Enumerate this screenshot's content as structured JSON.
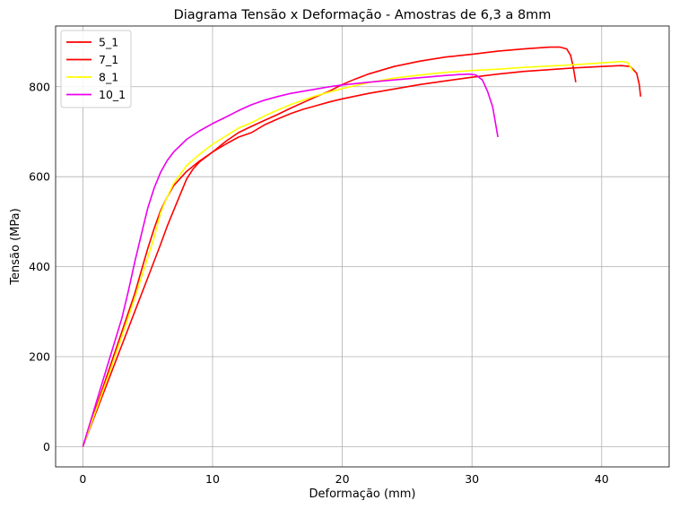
{
  "chart_data": {
    "type": "line",
    "title": "Diagrama Tensão x Deformação - Amostras de 6,3 a 8mm",
    "xlabel": "Deformação (mm)",
    "ylabel": "Tensão (MPa)",
    "xlim": [
      -2.1,
      45.2
    ],
    "ylim": [
      -45,
      935
    ],
    "xticks": [
      0,
      10,
      20,
      30,
      40
    ],
    "yticks": [
      0,
      200,
      400,
      600,
      800
    ],
    "grid": true,
    "legend_position": "top-left",
    "series": [
      {
        "name": "5_1",
        "color": "#ff0000",
        "points": [
          [
            0,
            0
          ],
          [
            1,
            75
          ],
          [
            2,
            150
          ],
          [
            3,
            225
          ],
          [
            4,
            300
          ],
          [
            5,
            375
          ],
          [
            6,
            450
          ],
          [
            6.5,
            490
          ],
          [
            7,
            525
          ],
          [
            7.5,
            560
          ],
          [
            8,
            595
          ],
          [
            8.5,
            617
          ],
          [
            9,
            633
          ],
          [
            10,
            655
          ],
          [
            11,
            672
          ],
          [
            12,
            688
          ],
          [
            13,
            698
          ],
          [
            14,
            715
          ],
          [
            15,
            728
          ],
          [
            16,
            740
          ],
          [
            17,
            750
          ],
          [
            18,
            758
          ],
          [
            19,
            766
          ],
          [
            20,
            773
          ],
          [
            22,
            785
          ],
          [
            24,
            795
          ],
          [
            26,
            805
          ],
          [
            28,
            813
          ],
          [
            30,
            821
          ],
          [
            32,
            828
          ],
          [
            34,
            834
          ],
          [
            36,
            838
          ],
          [
            38,
            842
          ],
          [
            40,
            845
          ],
          [
            41.5,
            847
          ],
          [
            42.2,
            845
          ],
          [
            42.7,
            830
          ],
          [
            42.9,
            805
          ],
          [
            43,
            778
          ]
        ]
      },
      {
        "name": "7_1",
        "color": "#ff0000",
        "points": [
          [
            0,
            0
          ],
          [
            1,
            85
          ],
          [
            2,
            170
          ],
          [
            3,
            255
          ],
          [
            4,
            340
          ],
          [
            4.5,
            390
          ],
          [
            5,
            440
          ],
          [
            5.5,
            485
          ],
          [
            6,
            525
          ],
          [
            6.5,
            555
          ],
          [
            7,
            580
          ],
          [
            8,
            612
          ],
          [
            9,
            635
          ],
          [
            10,
            655
          ],
          [
            11,
            678
          ],
          [
            12,
            698
          ],
          [
            13,
            712
          ],
          [
            14,
            725
          ],
          [
            15,
            738
          ],
          [
            16,
            752
          ],
          [
            17,
            765
          ],
          [
            18,
            778
          ],
          [
            19,
            790
          ],
          [
            20,
            805
          ],
          [
            21,
            817
          ],
          [
            22,
            828
          ],
          [
            24,
            845
          ],
          [
            26,
            857
          ],
          [
            28,
            866
          ],
          [
            30,
            872
          ],
          [
            32,
            879
          ],
          [
            34,
            884
          ],
          [
            35,
            886
          ],
          [
            36,
            888
          ],
          [
            36.8,
            888
          ],
          [
            37.3,
            884
          ],
          [
            37.6,
            870
          ],
          [
            37.8,
            845
          ],
          [
            38,
            810
          ]
        ]
      },
      {
        "name": "8_1",
        "color": "#ffff00",
        "points": [
          [
            0,
            0
          ],
          [
            1,
            80
          ],
          [
            2,
            160
          ],
          [
            3,
            245
          ],
          [
            4,
            330
          ],
          [
            5,
            420
          ],
          [
            5.5,
            465
          ],
          [
            6,
            520
          ],
          [
            6.5,
            555
          ],
          [
            7,
            585
          ],
          [
            8,
            625
          ],
          [
            9,
            650
          ],
          [
            10,
            672
          ],
          [
            11,
            690
          ],
          [
            12,
            708
          ],
          [
            13,
            720
          ],
          [
            14,
            735
          ],
          [
            15,
            748
          ],
          [
            16,
            760
          ],
          [
            17,
            770
          ],
          [
            18,
            780
          ],
          [
            19,
            788
          ],
          [
            20,
            796
          ],
          [
            22,
            809
          ],
          [
            24,
            819
          ],
          [
            26,
            826
          ],
          [
            28,
            832
          ],
          [
            30,
            836
          ],
          [
            32,
            839
          ],
          [
            34,
            843
          ],
          [
            36,
            846
          ],
          [
            38,
            849
          ],
          [
            40,
            853
          ],
          [
            41,
            855
          ],
          [
            41.6,
            856
          ],
          [
            42,
            854
          ],
          [
            42.2,
            845
          ],
          [
            42.4,
            835
          ]
        ]
      },
      {
        "name": "10_1",
        "color": "#ee00ee",
        "points": [
          [
            0,
            0
          ],
          [
            1,
            95
          ],
          [
            2,
            190
          ],
          [
            3,
            285
          ],
          [
            3.5,
            345
          ],
          [
            4,
            410
          ],
          [
            4.5,
            470
          ],
          [
            5,
            530
          ],
          [
            5.5,
            575
          ],
          [
            6,
            610
          ],
          [
            6.5,
            636
          ],
          [
            7,
            655
          ],
          [
            8,
            683
          ],
          [
            9,
            702
          ],
          [
            10,
            718
          ],
          [
            11,
            732
          ],
          [
            12,
            747
          ],
          [
            13,
            760
          ],
          [
            14,
            770
          ],
          [
            15,
            778
          ],
          [
            16,
            785
          ],
          [
            17,
            790
          ],
          [
            18,
            795
          ],
          [
            19,
            800
          ],
          [
            20,
            804
          ],
          [
            22,
            810
          ],
          [
            24,
            815
          ],
          [
            26,
            820
          ],
          [
            28,
            825
          ],
          [
            29,
            827
          ],
          [
            29.8,
            828
          ],
          [
            30.3,
            826
          ],
          [
            30.8,
            815
          ],
          [
            31.2,
            790
          ],
          [
            31.6,
            755
          ],
          [
            32,
            688
          ]
        ]
      }
    ]
  }
}
